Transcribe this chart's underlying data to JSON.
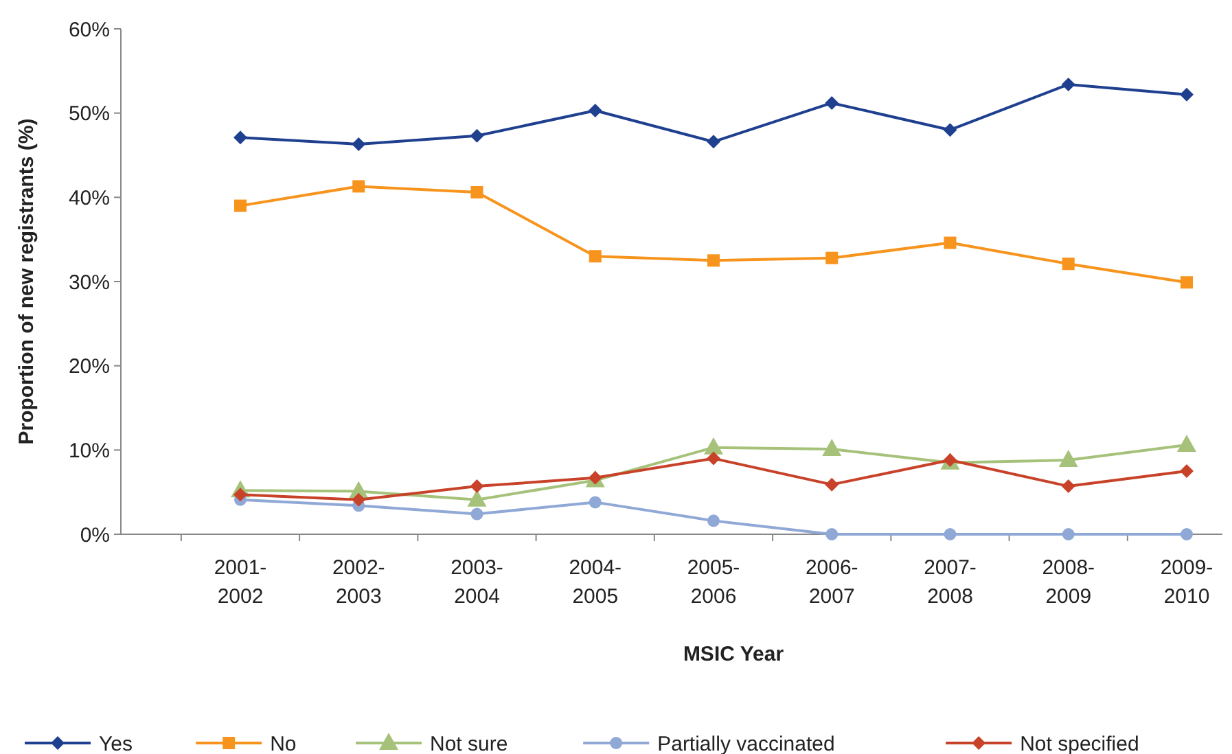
{
  "chart_data": {
    "type": "line",
    "xlabel": "MSIC Year",
    "ylabel": "Proportion of new registrants (%)",
    "categories": [
      "2001-2002",
      "2002-2003",
      "2003-2004",
      "2004-2005",
      "2005-2006",
      "2006-2007",
      "2007-2008",
      "2008-2009",
      "2009-2010"
    ],
    "ylim": [
      0,
      60
    ],
    "yticks": [
      {
        "value": 0,
        "label": "0%"
      },
      {
        "value": 10,
        "label": "10%"
      },
      {
        "value": 20,
        "label": "20%"
      },
      {
        "value": 30,
        "label": "30%"
      },
      {
        "value": 40,
        "label": "40%"
      },
      {
        "value": 50,
        "label": "50%"
      },
      {
        "value": 60,
        "label": "60%"
      }
    ],
    "grid": false,
    "legend": "bottom",
    "line_style": "solid",
    "series": [
      {
        "name": "Yes",
        "color": "#1f3f8f",
        "marker": "diamond",
        "values": [
          47.1,
          46.3,
          47.3,
          50.3,
          46.6,
          51.2,
          48.0,
          53.4,
          52.2
        ]
      },
      {
        "name": "No",
        "color": "#f7941d",
        "marker": "square",
        "values": [
          39.0,
          41.3,
          40.6,
          33.0,
          32.5,
          32.8,
          34.6,
          32.1,
          29.9
        ]
      },
      {
        "name": "Not sure",
        "color": "#a6c27a",
        "marker": "triangle",
        "values": [
          5.2,
          5.1,
          4.1,
          6.4,
          10.3,
          10.1,
          8.5,
          8.8,
          10.6
        ]
      },
      {
        "name": "Partially vaccinated",
        "color": "#8fa8d6",
        "marker": "circle",
        "values": [
          4.1,
          3.4,
          2.4,
          3.8,
          1.6,
          0,
          0,
          0,
          0
        ]
      },
      {
        "name": "Not specified",
        "color": "#c8422a",
        "marker": "diamond",
        "values": [
          4.7,
          4.1,
          5.7,
          6.7,
          9.0,
          5.9,
          8.8,
          5.7,
          7.5
        ]
      }
    ]
  }
}
